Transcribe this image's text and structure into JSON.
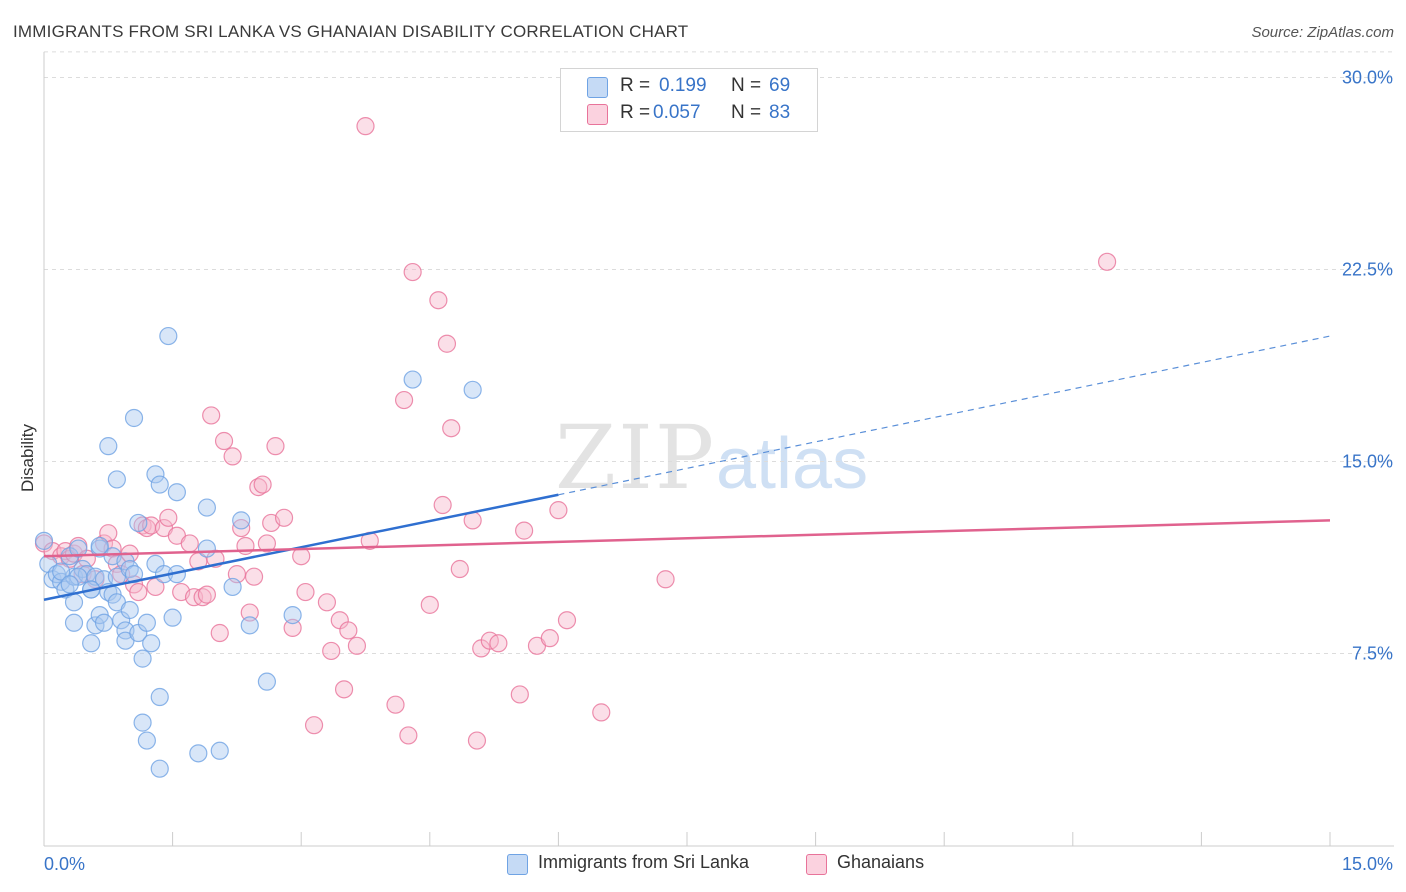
{
  "title": "IMMIGRANTS FROM SRI LANKA VS GHANAIAN DISABILITY CORRELATION CHART",
  "source": "Source: ZipAtlas.com",
  "watermark": {
    "zip": "ZIP",
    "atlas": "atlas"
  },
  "legend": {
    "r_label": "R =",
    "n_label": "N =",
    "rows": [
      {
        "r": "0.199",
        "n": "69",
        "color": "#a8c8f0"
      },
      {
        "r": "0.057",
        "n": "83",
        "color": "#f7b8cc"
      }
    ]
  },
  "chart_data": {
    "type": "scatter",
    "title": "IMMIGRANTS FROM SRI LANKA VS GHANAIAN DISABILITY CORRELATION CHART",
    "xlabel": "",
    "ylabel": "Disability",
    "xlim": [
      0,
      15
    ],
    "ylim": [
      0,
      31
    ],
    "x_tick_labels": [
      "0.0%",
      "15.0%"
    ],
    "y_ticks": [
      7.5,
      15.0,
      22.5,
      30.0
    ],
    "y_tick_labels": [
      "7.5%",
      "15.0%",
      "22.5%",
      "30.0%"
    ],
    "grid": true,
    "legend_position": "top-center",
    "series": [
      {
        "name": "Immigrants from Sri Lanka",
        "color": "#6fa3e4",
        "fill": "#a8c8f0",
        "trend": {
          "x": [
            0,
            6.0
          ],
          "y": [
            9.6,
            13.7
          ],
          "dashed_to": [
            15.0,
            19.9
          ]
        },
        "points": [
          [
            0.0,
            11.9
          ],
          [
            0.05,
            11.0
          ],
          [
            0.1,
            10.4
          ],
          [
            0.15,
            10.6
          ],
          [
            0.2,
            10.3
          ],
          [
            0.25,
            10.0
          ],
          [
            0.3,
            11.3
          ],
          [
            0.35,
            10.5
          ],
          [
            0.4,
            11.6
          ],
          [
            0.45,
            10.8
          ],
          [
            0.5,
            10.6
          ],
          [
            0.55,
            10.0
          ],
          [
            0.6,
            10.5
          ],
          [
            0.65,
            11.6
          ],
          [
            0.7,
            10.4
          ],
          [
            0.75,
            9.9
          ],
          [
            0.8,
            11.3
          ],
          [
            0.85,
            10.5
          ],
          [
            0.9,
            8.8
          ],
          [
            0.95,
            11.1
          ],
          [
            1.0,
            10.8
          ],
          [
            1.05,
            10.6
          ],
          [
            0.35,
            9.5
          ],
          [
            0.35,
            8.7
          ],
          [
            0.55,
            7.9
          ],
          [
            0.6,
            8.6
          ],
          [
            0.65,
            9.0
          ],
          [
            0.7,
            8.7
          ],
          [
            0.8,
            9.8
          ],
          [
            0.85,
            9.5
          ],
          [
            0.95,
            8.4
          ],
          [
            0.95,
            8.0
          ],
          [
            1.0,
            9.2
          ],
          [
            1.1,
            8.3
          ],
          [
            1.15,
            7.3
          ],
          [
            1.2,
            8.7
          ],
          [
            1.25,
            7.9
          ],
          [
            1.3,
            11.0
          ],
          [
            1.4,
            10.6
          ],
          [
            1.55,
            10.6
          ],
          [
            1.5,
            8.9
          ],
          [
            1.35,
            5.8
          ],
          [
            1.15,
            4.8
          ],
          [
            1.2,
            4.1
          ],
          [
            1.35,
            3.0
          ],
          [
            1.8,
            3.6
          ],
          [
            2.05,
            3.7
          ],
          [
            0.75,
            15.6
          ],
          [
            0.85,
            14.3
          ],
          [
            1.05,
            16.7
          ],
          [
            1.1,
            12.6
          ],
          [
            1.3,
            14.5
          ],
          [
            1.35,
            14.1
          ],
          [
            1.55,
            13.8
          ],
          [
            1.45,
            19.9
          ],
          [
            1.9,
            13.2
          ],
          [
            1.9,
            11.6
          ],
          [
            2.2,
            10.1
          ],
          [
            2.3,
            12.7
          ],
          [
            2.4,
            8.6
          ],
          [
            2.6,
            6.4
          ],
          [
            2.9,
            9.0
          ],
          [
            4.3,
            18.2
          ],
          [
            5.0,
            17.8
          ],
          [
            0.55,
            10.0
          ],
          [
            0.4,
            10.5
          ],
          [
            0.2,
            10.7
          ],
          [
            0.3,
            10.2
          ],
          [
            0.65,
            11.7
          ]
        ]
      },
      {
        "name": "Ghanaians",
        "color": "#e8739a",
        "fill": "#f7b8cc",
        "trend": {
          "x": [
            0,
            15.0
          ],
          "y": [
            11.3,
            12.7
          ]
        },
        "points": [
          [
            0.0,
            11.8
          ],
          [
            0.1,
            11.5
          ],
          [
            0.2,
            11.3
          ],
          [
            0.25,
            11.5
          ],
          [
            0.3,
            11.2
          ],
          [
            0.35,
            11.4
          ],
          [
            0.4,
            11.7
          ],
          [
            0.45,
            10.6
          ],
          [
            0.5,
            11.2
          ],
          [
            0.6,
            10.4
          ],
          [
            0.7,
            11.8
          ],
          [
            0.75,
            12.2
          ],
          [
            0.8,
            11.6
          ],
          [
            0.85,
            11.0
          ],
          [
            0.9,
            10.6
          ],
          [
            1.0,
            11.4
          ],
          [
            1.05,
            10.2
          ],
          [
            1.1,
            9.9
          ],
          [
            1.15,
            12.5
          ],
          [
            1.2,
            12.4
          ],
          [
            1.25,
            12.5
          ],
          [
            1.3,
            10.1
          ],
          [
            1.4,
            12.4
          ],
          [
            1.45,
            12.8
          ],
          [
            1.55,
            12.1
          ],
          [
            1.6,
            9.9
          ],
          [
            1.7,
            11.8
          ],
          [
            1.75,
            9.7
          ],
          [
            1.8,
            11.1
          ],
          [
            1.85,
            9.7
          ],
          [
            1.9,
            9.8
          ],
          [
            1.95,
            16.8
          ],
          [
            2.0,
            11.2
          ],
          [
            2.05,
            8.3
          ],
          [
            2.1,
            15.8
          ],
          [
            2.2,
            15.2
          ],
          [
            2.25,
            10.6
          ],
          [
            2.3,
            12.4
          ],
          [
            2.35,
            11.7
          ],
          [
            2.4,
            9.1
          ],
          [
            2.45,
            10.5
          ],
          [
            2.5,
            14.0
          ],
          [
            2.55,
            14.1
          ],
          [
            2.6,
            11.8
          ],
          [
            2.65,
            12.6
          ],
          [
            2.7,
            15.6
          ],
          [
            2.8,
            12.8
          ],
          [
            2.9,
            8.5
          ],
          [
            3.0,
            11.3
          ],
          [
            3.05,
            9.9
          ],
          [
            3.15,
            4.7
          ],
          [
            3.3,
            9.5
          ],
          [
            3.35,
            7.6
          ],
          [
            3.45,
            8.8
          ],
          [
            3.5,
            6.1
          ],
          [
            3.55,
            8.4
          ],
          [
            3.65,
            7.8
          ],
          [
            3.75,
            28.1
          ],
          [
            3.8,
            11.9
          ],
          [
            4.1,
            5.5
          ],
          [
            4.2,
            17.4
          ],
          [
            4.25,
            4.3
          ],
          [
            4.3,
            22.4
          ],
          [
            4.5,
            9.4
          ],
          [
            4.6,
            21.3
          ],
          [
            4.65,
            13.3
          ],
          [
            4.7,
            19.6
          ],
          [
            4.75,
            16.3
          ],
          [
            4.85,
            10.8
          ],
          [
            5.0,
            12.7
          ],
          [
            5.05,
            4.1
          ],
          [
            5.1,
            7.7
          ],
          [
            5.2,
            8.0
          ],
          [
            5.3,
            7.9
          ],
          [
            5.55,
            5.9
          ],
          [
            5.6,
            12.3
          ],
          [
            5.75,
            7.8
          ],
          [
            5.9,
            8.1
          ],
          [
            6.0,
            13.1
          ],
          [
            6.1,
            8.8
          ],
          [
            6.5,
            5.2
          ],
          [
            7.25,
            10.4
          ],
          [
            12.4,
            22.8
          ]
        ]
      }
    ]
  },
  "bottom_legend": [
    {
      "label": "Immigrants from Sri Lanka",
      "color": "#a8c8f0",
      "border": "#6fa3e4"
    },
    {
      "label": "Ghanaians",
      "color": "#f7b8cc",
      "border": "#e8739a"
    }
  ]
}
